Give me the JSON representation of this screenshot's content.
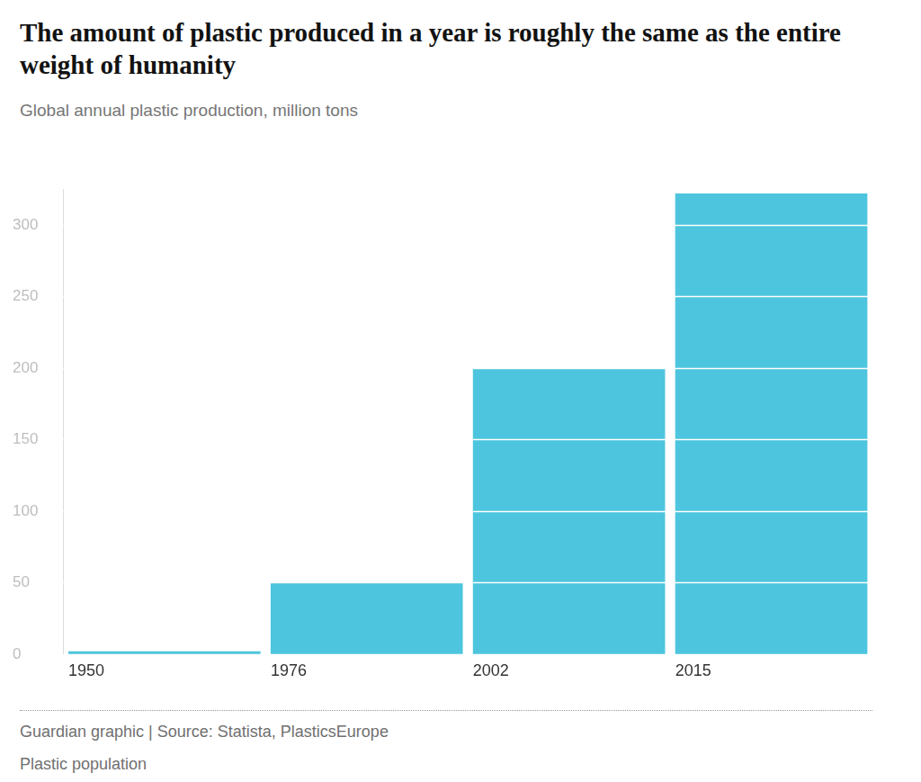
{
  "chart_data": {
    "type": "bar",
    "title": "The amount of plastic produced in a year is roughly the same as the entire weight of humanity",
    "subtitle": "Global annual plastic production, million tons",
    "categories": [
      "1950",
      "1976",
      "2002",
      "2015"
    ],
    "values": [
      2,
      50,
      200,
      322
    ],
    "color": "#4dc5de",
    "ylim": [
      0,
      325
    ],
    "yticks": [
      0,
      50,
      100,
      150,
      200,
      250,
      300
    ],
    "grid": true,
    "source": "Guardian graphic | Source: Statista, PlasticsEurope",
    "caption": "Plastic population"
  }
}
